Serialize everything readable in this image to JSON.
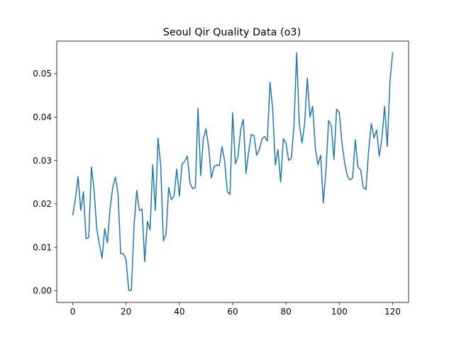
{
  "chart_data": {
    "type": "line",
    "title": "Seoul Qir Quality Data (o3)",
    "xlabel": "",
    "ylabel": "",
    "xlim": [
      -6,
      126
    ],
    "ylim": [
      -0.0027,
      0.0575
    ],
    "x_ticks": [
      "0",
      "20",
      "40",
      "60",
      "80",
      "100",
      "120"
    ],
    "y_ticks": [
      "0.00",
      "0.01",
      "0.02",
      "0.03",
      "0.04",
      "0.05"
    ],
    "grid": false,
    "line_color": "#1f77b4",
    "series": [
      {
        "x": [
          0,
          1,
          2,
          3,
          4,
          5,
          6,
          7,
          8,
          9,
          10,
          11,
          12,
          13,
          14,
          15,
          16,
          17,
          18,
          19,
          20,
          21,
          22,
          23,
          24,
          25,
          26,
          27,
          28,
          29,
          30,
          31,
          32,
          33,
          34,
          35,
          36,
          37,
          38,
          39,
          40,
          41,
          42,
          43,
          44,
          45,
          46,
          47,
          48,
          49,
          50,
          51,
          52,
          53,
          54,
          55,
          56,
          57,
          58,
          59,
          60,
          61,
          62,
          63,
          64,
          65,
          66,
          67,
          68,
          69,
          70,
          71,
          72,
          73,
          74,
          75,
          76,
          77,
          78,
          79,
          80,
          81,
          82,
          83,
          84,
          85,
          86,
          87,
          88,
          89,
          90,
          91,
          92,
          93,
          94,
          95,
          96,
          97,
          98,
          99,
          100,
          101,
          102,
          103,
          104,
          105,
          106,
          107,
          108,
          109,
          110,
          111,
          112,
          113,
          114,
          115,
          116,
          117,
          118,
          119,
          120
        ],
        "values": [
          0.0175,
          0.0212,
          0.0263,
          0.0185,
          0.0228,
          0.012,
          0.0122,
          0.0285,
          0.0232,
          0.0143,
          0.0107,
          0.0075,
          0.0143,
          0.011,
          0.0188,
          0.0238,
          0.0262,
          0.0223,
          0.0085,
          0.0085,
          0.0072,
          0.0001,
          0.0001,
          0.015,
          0.0231,
          0.0185,
          0.0188,
          0.0067,
          0.016,
          0.014,
          0.029,
          0.0185,
          0.0352,
          0.0288,
          0.0115,
          0.013,
          0.0238,
          0.021,
          0.0218,
          0.028,
          0.0218,
          0.0292,
          0.0298,
          0.031,
          0.0248,
          0.0235,
          0.0238,
          0.042,
          0.0265,
          0.035,
          0.0373,
          0.033,
          0.026,
          0.0285,
          0.029,
          0.0288,
          0.0332,
          0.0298,
          0.0228,
          0.0222,
          0.041,
          0.0292,
          0.031,
          0.037,
          0.0395,
          0.027,
          0.032,
          0.036,
          0.0357,
          0.0312,
          0.0325,
          0.035,
          0.0355,
          0.0345,
          0.048,
          0.042,
          0.029,
          0.0325,
          0.025,
          0.035,
          0.034,
          0.03,
          0.0305,
          0.038,
          0.0548,
          0.0385,
          0.034,
          0.0385,
          0.049,
          0.04,
          0.0425,
          0.033,
          0.029,
          0.0312,
          0.0202,
          0.0278,
          0.0392,
          0.038,
          0.0302,
          0.0418,
          0.041,
          0.034,
          0.0295,
          0.0265,
          0.0255,
          0.026,
          0.0348,
          0.0285,
          0.0278,
          0.0238,
          0.0233,
          0.0322,
          0.0385,
          0.0352,
          0.037,
          0.031,
          0.0352,
          0.0425,
          0.0332,
          0.048,
          0.0548
        ]
      }
    ]
  }
}
